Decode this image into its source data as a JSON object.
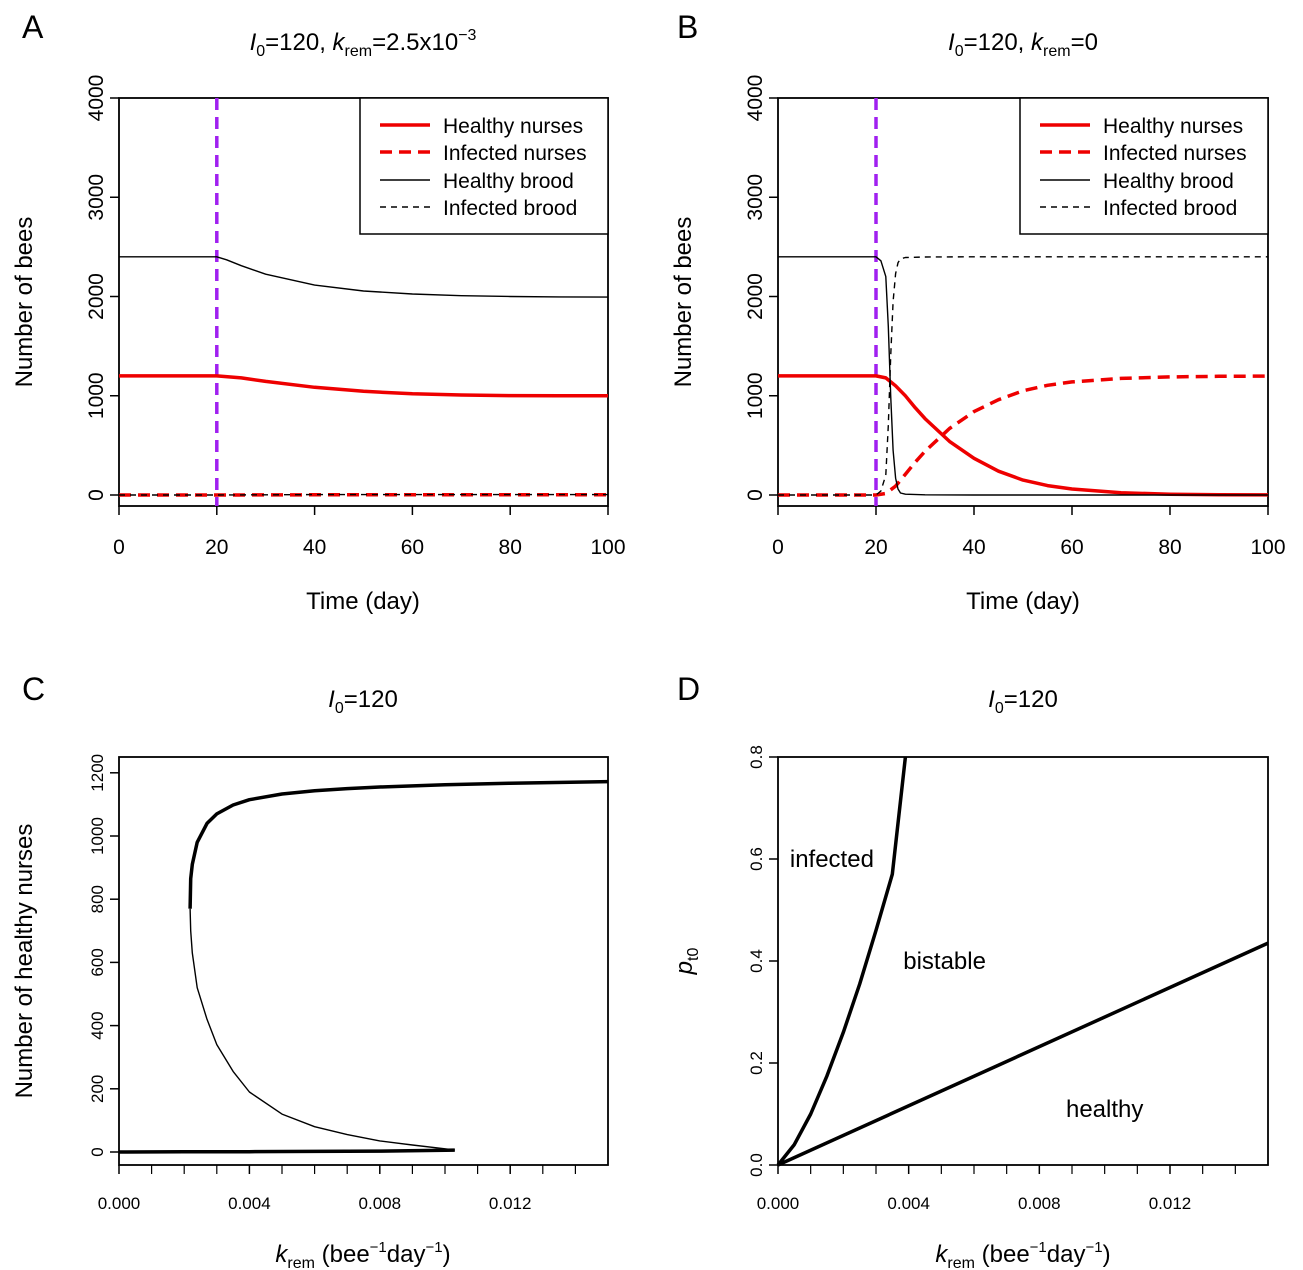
{
  "panels": [
    {
      "letter": "A",
      "title": {
        "var": "I",
        "sub": "0",
        "mid": "=120, ",
        "var2": "k",
        "sub2": "rem",
        "rest": "=2.5x10",
        "sup": "−3"
      },
      "xlabel": "Time (day)",
      "ylabel": "Number of bees",
      "legend": [
        "Healthy nurses",
        "Infected nurses",
        "Healthy brood",
        "Infected brood"
      ]
    },
    {
      "letter": "B",
      "title": {
        "var": "I",
        "sub": "0",
        "mid": "=120, ",
        "var2": "k",
        "sub2": "rem",
        "rest": "=0",
        "sup": ""
      },
      "xlabel": "Time (day)",
      "ylabel": "Number of bees",
      "legend": [
        "Healthy nurses",
        "Infected nurses",
        "Healthy brood",
        "Infected brood"
      ]
    },
    {
      "letter": "C",
      "title": {
        "var": "I",
        "sub": "0",
        "mid": "=120"
      },
      "xlabel": {
        "var": "k",
        "sub": "rem",
        "pre": " (bee",
        "sup1": "−1",
        "mid": "day",
        "sup2": "−1",
        "post": ")"
      },
      "ylabel": "Number of healthy nurses"
    },
    {
      "letter": "D",
      "title": {
        "var": "I",
        "sub": "0",
        "mid": "=120"
      },
      "xlabel": {
        "var": "k",
        "sub": "rem",
        "pre": " (bee",
        "sup1": "−1",
        "mid": "day",
        "sup2": "−1",
        "post": ")"
      },
      "ylabel": {
        "var": "p",
        "sub": "t0"
      },
      "region_labels": [
        "infected",
        "bistable",
        "healthy"
      ]
    }
  ],
  "chart_data": [
    {
      "type": "line",
      "panel": "A",
      "xlim": [
        0,
        100
      ],
      "ylim": [
        0,
        4000
      ],
      "xticks": [
        0,
        20,
        40,
        60,
        80,
        100
      ],
      "yticks": [
        0,
        1000,
        2000,
        3000,
        4000
      ],
      "legend_position": "top-right",
      "vline": {
        "x": 20,
        "color": "#a020f0",
        "style": "dashed"
      },
      "series": [
        {
          "name": "Healthy nurses",
          "color": "#ee0000",
          "style": "solid",
          "width": "thick",
          "x": [
            0,
            20,
            25,
            30,
            40,
            50,
            60,
            70,
            80,
            90,
            100
          ],
          "y": [
            1200,
            1200,
            1180,
            1145,
            1085,
            1045,
            1020,
            1008,
            1002,
            1000,
            999
          ]
        },
        {
          "name": "Infected nurses",
          "color": "#ee0000",
          "style": "dashed",
          "width": "thick",
          "x": [
            0,
            20,
            40,
            60,
            80,
            100
          ],
          "y": [
            0,
            0,
            2,
            2,
            2,
            2
          ]
        },
        {
          "name": "Healthy brood",
          "color": "#000000",
          "style": "solid",
          "width": "thin",
          "x": [
            0,
            20,
            22,
            25,
            30,
            40,
            50,
            60,
            70,
            80,
            90,
            100
          ],
          "y": [
            2400,
            2400,
            2370,
            2310,
            2225,
            2115,
            2055,
            2025,
            2008,
            2000,
            1996,
            1994
          ]
        },
        {
          "name": "Infected brood",
          "color": "#000000",
          "style": "dashed",
          "width": "thin",
          "x": [
            0,
            20,
            40,
            60,
            80,
            100
          ],
          "y": [
            0,
            0,
            4,
            4,
            4,
            4
          ]
        }
      ]
    },
    {
      "type": "line",
      "panel": "B",
      "xlim": [
        0,
        100
      ],
      "ylim": [
        0,
        4000
      ],
      "xticks": [
        0,
        20,
        40,
        60,
        80,
        100
      ],
      "yticks": [
        0,
        1000,
        2000,
        3000,
        4000
      ],
      "legend_position": "top-right",
      "vline": {
        "x": 20,
        "color": "#a020f0",
        "style": "dashed"
      },
      "series": [
        {
          "name": "Healthy nurses",
          "color": "#ee0000",
          "style": "solid",
          "width": "thick",
          "x": [
            0,
            20,
            22,
            24,
            26,
            28,
            30,
            35,
            40,
            45,
            50,
            55,
            60,
            70,
            80,
            90,
            100
          ],
          "y": [
            1200,
            1200,
            1180,
            1100,
            1000,
            880,
            770,
            540,
            370,
            240,
            150,
            95,
            60,
            22,
            8,
            3,
            1
          ]
        },
        {
          "name": "Infected nurses",
          "color": "#ee0000",
          "style": "dashed",
          "width": "thick",
          "x": [
            0,
            20,
            22,
            24,
            26,
            28,
            30,
            35,
            40,
            45,
            50,
            55,
            60,
            70,
            80,
            90,
            100
          ],
          "y": [
            0,
            0,
            15,
            90,
            210,
            330,
            440,
            670,
            840,
            960,
            1050,
            1105,
            1140,
            1175,
            1190,
            1196,
            1198
          ]
        },
        {
          "name": "Healthy brood",
          "color": "#000000",
          "style": "solid",
          "width": "thin",
          "x": [
            0,
            20,
            21,
            22,
            22.5,
            23,
            23.5,
            24,
            24.5,
            25,
            26,
            30,
            40,
            60,
            100
          ],
          "y": [
            2400,
            2400,
            2360,
            2200,
            1700,
            1000,
            450,
            170,
            60,
            20,
            8,
            2,
            0,
            0,
            0
          ]
        },
        {
          "name": "Infected brood",
          "color": "#000000",
          "style": "dashed",
          "width": "thin",
          "x": [
            0,
            20,
            21,
            22,
            22.5,
            23,
            23.5,
            24,
            24.5,
            25,
            26,
            30,
            40,
            60,
            100
          ],
          "y": [
            0,
            0,
            40,
            200,
            700,
            1400,
            1950,
            2230,
            2340,
            2380,
            2393,
            2398,
            2400,
            2400,
            2400
          ]
        }
      ]
    },
    {
      "type": "line",
      "panel": "C",
      "xlim": [
        0,
        0.015
      ],
      "ylim": [
        0,
        1250
      ],
      "xticks": [
        0.0,
        0.004,
        0.008,
        0.012
      ],
      "xtick_labels": [
        "0.000",
        "0.004",
        "0.008",
        "0.012"
      ],
      "yticks": [
        0,
        200,
        400,
        600,
        800,
        1000,
        1200
      ],
      "series": [
        {
          "stability": "stable",
          "width": "thick",
          "x": [
            0.00218,
            0.0022,
            0.00225,
            0.0024,
            0.0027,
            0.003,
            0.0035,
            0.004,
            0.005,
            0.006,
            0.007,
            0.008,
            0.01,
            0.012,
            0.015
          ],
          "y": [
            770,
            865,
            910,
            980,
            1040,
            1070,
            1098,
            1115,
            1133,
            1143,
            1150,
            1155,
            1162,
            1167,
            1172
          ]
        },
        {
          "stability": "unstable",
          "width": "thin",
          "x": [
            0.00218,
            0.0022,
            0.00225,
            0.0024,
            0.0027,
            0.003,
            0.0035,
            0.004,
            0.005,
            0.006,
            0.007,
            0.008,
            0.009,
            0.01,
            0.0103
          ],
          "y": [
            770,
            700,
            630,
            520,
            420,
            340,
            255,
            190,
            120,
            80,
            55,
            35,
            22,
            10,
            6
          ]
        },
        {
          "stability": "stable",
          "width": "thick",
          "x": [
            0,
            0.002,
            0.004,
            0.006,
            0.008,
            0.0103
          ],
          "y": [
            0,
            0.5,
            1,
            2,
            3,
            6
          ]
        }
      ]
    },
    {
      "type": "line",
      "panel": "D",
      "xlim": [
        0,
        0.015
      ],
      "ylim": [
        0,
        0.8
      ],
      "xticks": [
        0.0,
        0.004,
        0.008,
        0.012
      ],
      "xtick_labels": [
        "0.000",
        "0.004",
        "0.008",
        "0.012"
      ],
      "yticks": [
        0.0,
        0.2,
        0.4,
        0.6,
        0.8
      ],
      "ytick_labels": [
        "0.0",
        "0.2",
        "0.4",
        "0.6",
        "0.8"
      ],
      "regions": [
        {
          "label": "infected",
          "x": 0.00165,
          "y": 0.6
        },
        {
          "label": "bistable",
          "x": 0.0051,
          "y": 0.4
        },
        {
          "label": "healthy",
          "x": 0.01,
          "y": 0.11
        }
      ],
      "series": [
        {
          "width": "thick",
          "x": [
            0,
            0.0005,
            0.001,
            0.0015,
            0.002,
            0.0025,
            0.003,
            0.0035,
            0.0039
          ],
          "y": [
            0,
            0.04,
            0.1,
            0.175,
            0.26,
            0.355,
            0.46,
            0.57,
            0.8
          ]
        },
        {
          "width": "thick",
          "x": [
            0,
            0.015
          ],
          "y": [
            0,
            0.435
          ]
        }
      ]
    }
  ]
}
